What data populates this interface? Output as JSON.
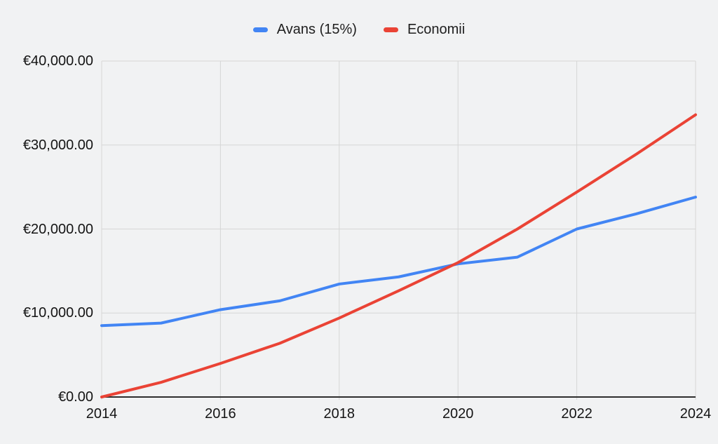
{
  "legend": {
    "items": [
      {
        "label": "Avans (15%)",
        "color": "#4285f4"
      },
      {
        "label": "Economii",
        "color": "#ea4335"
      }
    ]
  },
  "chart_data": {
    "type": "line",
    "title": "",
    "xlabel": "",
    "ylabel": "",
    "currency": "EUR",
    "x": [
      2014,
      2015,
      2016,
      2017,
      2018,
      2019,
      2020,
      2021,
      2022,
      2023,
      2024
    ],
    "series": [
      {
        "name": "Avans (15%)",
        "color": "#4285f4",
        "values": [
          8500,
          8800,
          10400,
          11450,
          13450,
          14300,
          15850,
          16650,
          20000,
          21800,
          23800
        ]
      },
      {
        "name": "Economii",
        "color": "#ea4335",
        "values": [
          0,
          1750,
          4000,
          6400,
          9400,
          12650,
          16000,
          20000,
          24400,
          28900,
          33600
        ]
      }
    ],
    "xlim": [
      2014,
      2024
    ],
    "ylim": [
      0,
      40000
    ],
    "x_tick_values": [
      2014,
      2016,
      2018,
      2020,
      2022,
      2024
    ],
    "x_tick_labels": [
      "2014",
      "2016",
      "2018",
      "2020",
      "2022",
      "2024"
    ],
    "y_tick_values": [
      0,
      10000,
      20000,
      30000,
      40000
    ],
    "y_tick_labels": [
      "€0.00",
      "€10,000.00",
      "€20,000.00",
      "€30,000.00",
      "€40,000.00"
    ],
    "grid": true,
    "legend_position": "top"
  },
  "colors": {
    "background": "#f1f2f3",
    "gridline": "#d6d6d6",
    "axis": "#2e2e2e",
    "tick_text": "#141414"
  }
}
